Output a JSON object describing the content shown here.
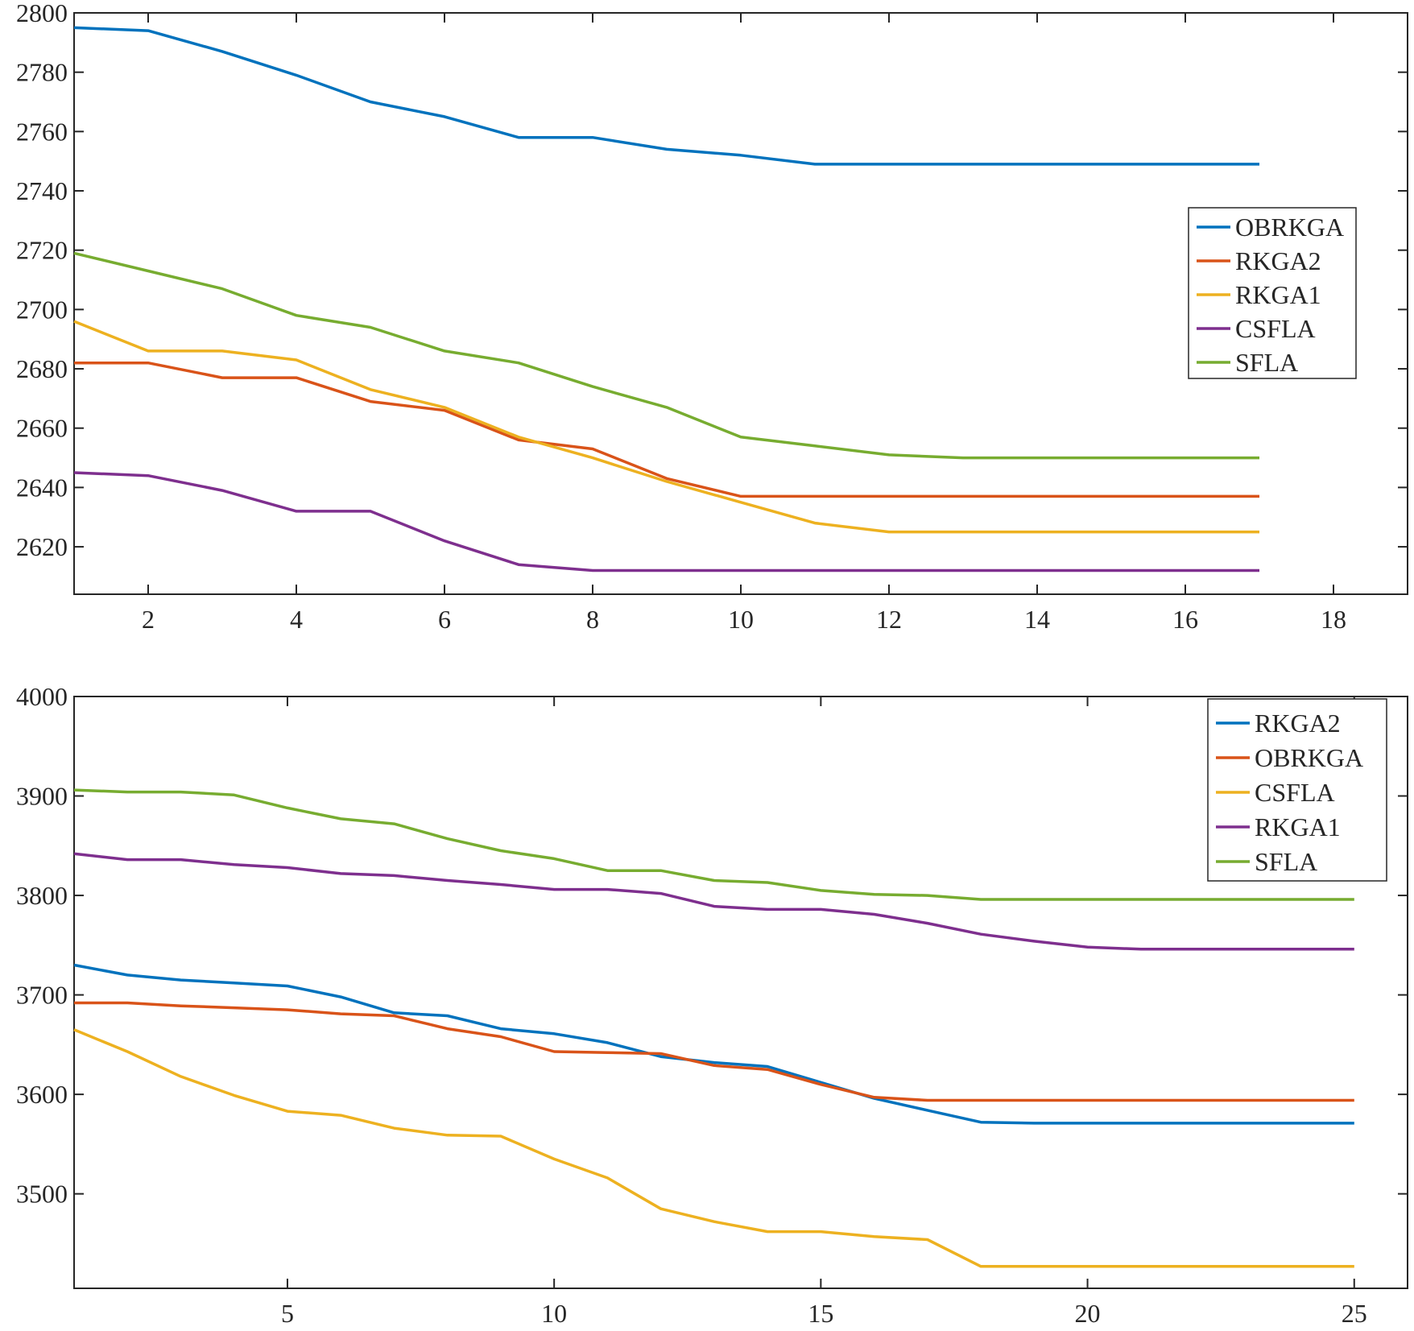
{
  "chart_data": [
    {
      "type": "line",
      "title": "",
      "xlabel": "",
      "ylabel": "",
      "xlim": [
        1,
        19
      ],
      "ylim": [
        2604,
        2800
      ],
      "xticks": [
        2,
        4,
        6,
        8,
        10,
        12,
        14,
        16,
        18
      ],
      "yticks": [
        2620,
        2640,
        2660,
        2680,
        2700,
        2720,
        2740,
        2760,
        2780,
        2800
      ],
      "legend_position": "right",
      "x": [
        1,
        2,
        3,
        4,
        5,
        6,
        7,
        8,
        9,
        10,
        11,
        12,
        13,
        14,
        15,
        16,
        17
      ],
      "series": [
        {
          "name": "OBRKGA",
          "color": "#0072BD",
          "values": [
            2795,
            2794,
            2787,
            2779,
            2770,
            2765,
            2758,
            2758,
            2754,
            2752,
            2749,
            2749,
            2749,
            2749,
            2749,
            2749,
            2749
          ]
        },
        {
          "name": "RKGA2",
          "color": "#D95319",
          "values": [
            2682,
            2682,
            2677,
            2677,
            2669,
            2666,
            2656,
            2653,
            2643,
            2637,
            2637,
            2637,
            2637,
            2637,
            2637,
            2637,
            2637
          ]
        },
        {
          "name": "RKGA1",
          "color": "#EDB120",
          "values": [
            2696,
            2686,
            2686,
            2683,
            2673,
            2667,
            2657,
            2650,
            2642,
            2635,
            2628,
            2625,
            2625,
            2625,
            2625,
            2625,
            2625
          ]
        },
        {
          "name": "CSFLA",
          "color": "#7E2F8E",
          "values": [
            2645,
            2644,
            2639,
            2632,
            2632,
            2622,
            2614,
            2612,
            2612,
            2612,
            2612,
            2612,
            2612,
            2612,
            2612,
            2612,
            2612
          ]
        },
        {
          "name": "SFLA",
          "color": "#77AC30",
          "values": [
            2719,
            2713,
            2707,
            2698,
            2694,
            2686,
            2682,
            2674,
            2667,
            2657,
            2654,
            2651,
            2650,
            2650,
            2650,
            2650,
            2650
          ]
        }
      ]
    },
    {
      "type": "line",
      "title": "",
      "xlabel": "",
      "ylabel": "",
      "xlim": [
        1,
        26
      ],
      "ylim": [
        3405,
        4000
      ],
      "xticks": [
        5,
        10,
        15,
        20,
        25
      ],
      "yticks": [
        3500,
        3600,
        3700,
        3800,
        3900,
        4000
      ],
      "legend_position": "top-right",
      "x": [
        1,
        2,
        3,
        4,
        5,
        6,
        7,
        8,
        9,
        10,
        11,
        12,
        13,
        14,
        15,
        16,
        17,
        18,
        19,
        20,
        21,
        22,
        23,
        24,
        25
      ],
      "series": [
        {
          "name": "RKGA2",
          "color": "#0072BD",
          "values": [
            3730,
            3720,
            3715,
            3712,
            3709,
            3698,
            3682,
            3679,
            3666,
            3661,
            3652,
            3638,
            3632,
            3628,
            3612,
            3596,
            3584,
            3572,
            3571,
            3571,
            3571,
            3571,
            3571,
            3571,
            3571
          ]
        },
        {
          "name": "OBRKGA",
          "color": "#D95319",
          "values": [
            3692,
            3692,
            3689,
            3687,
            3685,
            3681,
            3679,
            3666,
            3658,
            3643,
            3642,
            3641,
            3629,
            3625,
            3610,
            3597,
            3594,
            3594,
            3594,
            3594,
            3594,
            3594,
            3594,
            3594,
            3594
          ]
        },
        {
          "name": "CSFLA",
          "color": "#EDB120",
          "values": [
            3665,
            3643,
            3618,
            3599,
            3583,
            3579,
            3566,
            3559,
            3558,
            3535,
            3516,
            3485,
            3472,
            3462,
            3462,
            3457,
            3454,
            3427,
            3427,
            3427,
            3427,
            3427,
            3427,
            3427,
            3427
          ]
        },
        {
          "name": "RKGA1",
          "color": "#7E2F8E",
          "values": [
            3842,
            3836,
            3836,
            3831,
            3828,
            3822,
            3820,
            3815,
            3811,
            3806,
            3806,
            3802,
            3789,
            3786,
            3786,
            3781,
            3772,
            3761,
            3754,
            3748,
            3746,
            3746,
            3746,
            3746,
            3746
          ]
        },
        {
          "name": "SFLA",
          "color": "#77AC30",
          "values": [
            3906,
            3904,
            3904,
            3901,
            3888,
            3877,
            3872,
            3857,
            3845,
            3837,
            3825,
            3825,
            3815,
            3813,
            3805,
            3801,
            3800,
            3796,
            3796,
            3796,
            3796,
            3796,
            3796,
            3796,
            3796
          ]
        }
      ]
    }
  ]
}
